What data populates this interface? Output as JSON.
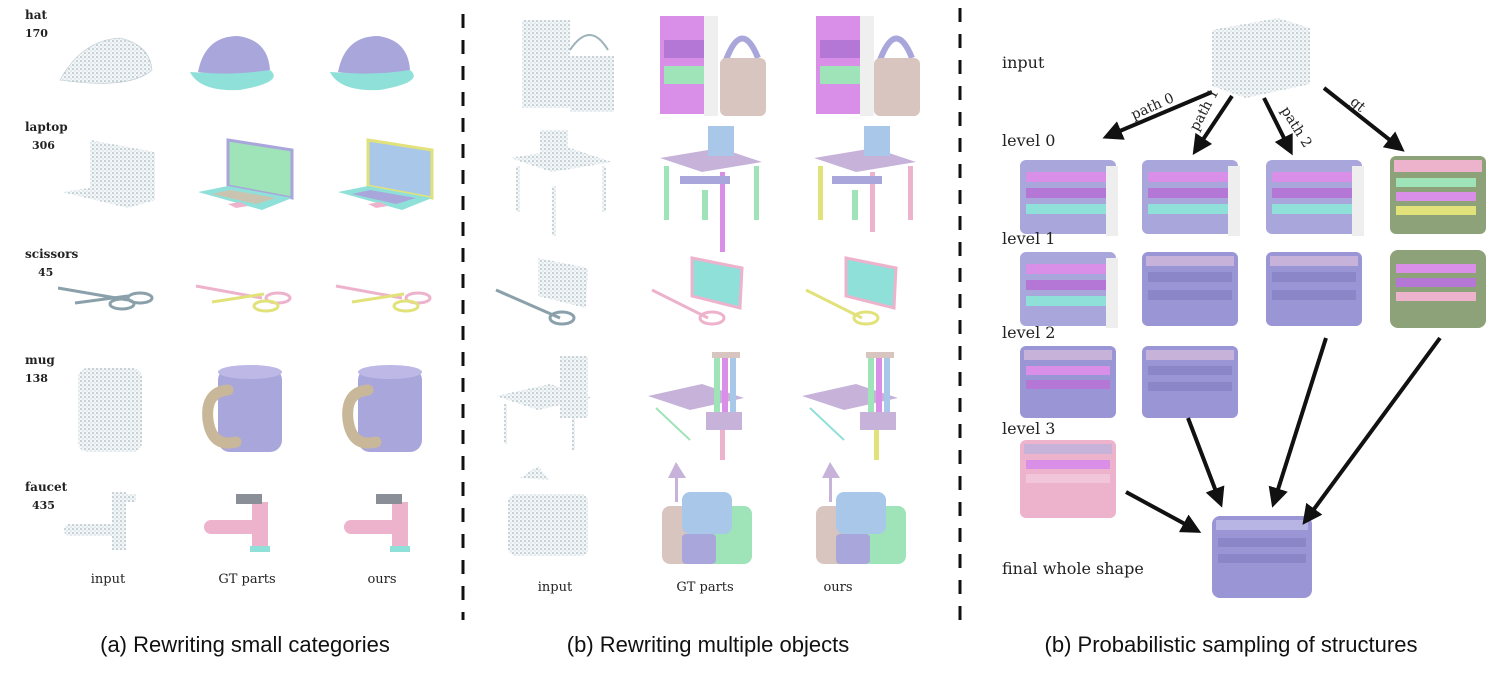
{
  "panel_a": {
    "categories": [
      {
        "name": "hat",
        "count": "170"
      },
      {
        "name": "laptop",
        "count": "306"
      },
      {
        "name": "scissors",
        "count": "45"
      },
      {
        "name": "mug",
        "count": "138"
      },
      {
        "name": "faucet",
        "count": "435"
      }
    ],
    "columns": [
      "input",
      "GT parts",
      "ours"
    ],
    "caption": "(a) Rewriting small categories"
  },
  "panel_b": {
    "columns": [
      "input",
      "GT parts",
      "ours"
    ],
    "caption": "(b) Rewriting multiple objects"
  },
  "panel_c": {
    "rows": [
      "input",
      "level 0",
      "level 1",
      "level 2",
      "level 3",
      "final whole shape"
    ],
    "paths": [
      "path 0",
      "path 1",
      "path 2",
      "gt"
    ],
    "caption": "(b) Probabilistic sampling of structures"
  },
  "colors": {
    "lavender": "#a9a6dc",
    "purple_light": "#c7b3d9",
    "magenta": "#d98ee8",
    "aqua": "#8fe0d9",
    "mint": "#9fe3b8",
    "sage": "#8ea27a",
    "pink": "#eeb3cc",
    "point_cloud": "#9db2bb"
  }
}
